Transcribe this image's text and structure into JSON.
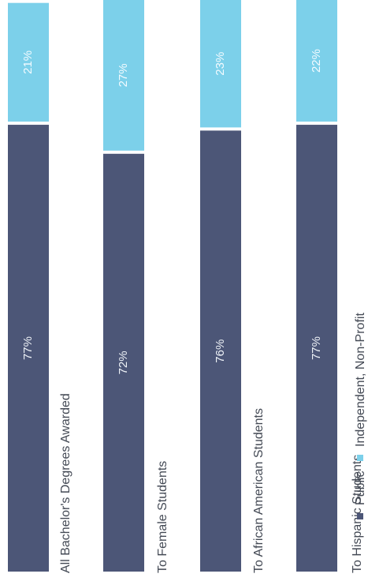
{
  "chart_data": {
    "type": "bar",
    "stacked": true,
    "orientation": "rotated",
    "categories": [
      "All Bachelor's Degrees Awarded",
      "To Female Students",
      "To African American Students",
      "To Hispanic Students"
    ],
    "series": [
      {
        "name": "Public",
        "values": [
          77,
          72,
          76,
          77
        ],
        "labels": [
          "77%",
          "72%",
          "76%",
          "77%"
        ],
        "color": "#4c5677"
      },
      {
        "name": "Independent, Non-Profit",
        "values": [
          21,
          27,
          23,
          22
        ],
        "labels": [
          "21%",
          "27%",
          "23%",
          "22%"
        ],
        "color": "#7cd0ea"
      }
    ],
    "ylim": [
      0,
      100
    ],
    "legend_position": "right",
    "grid": false
  }
}
